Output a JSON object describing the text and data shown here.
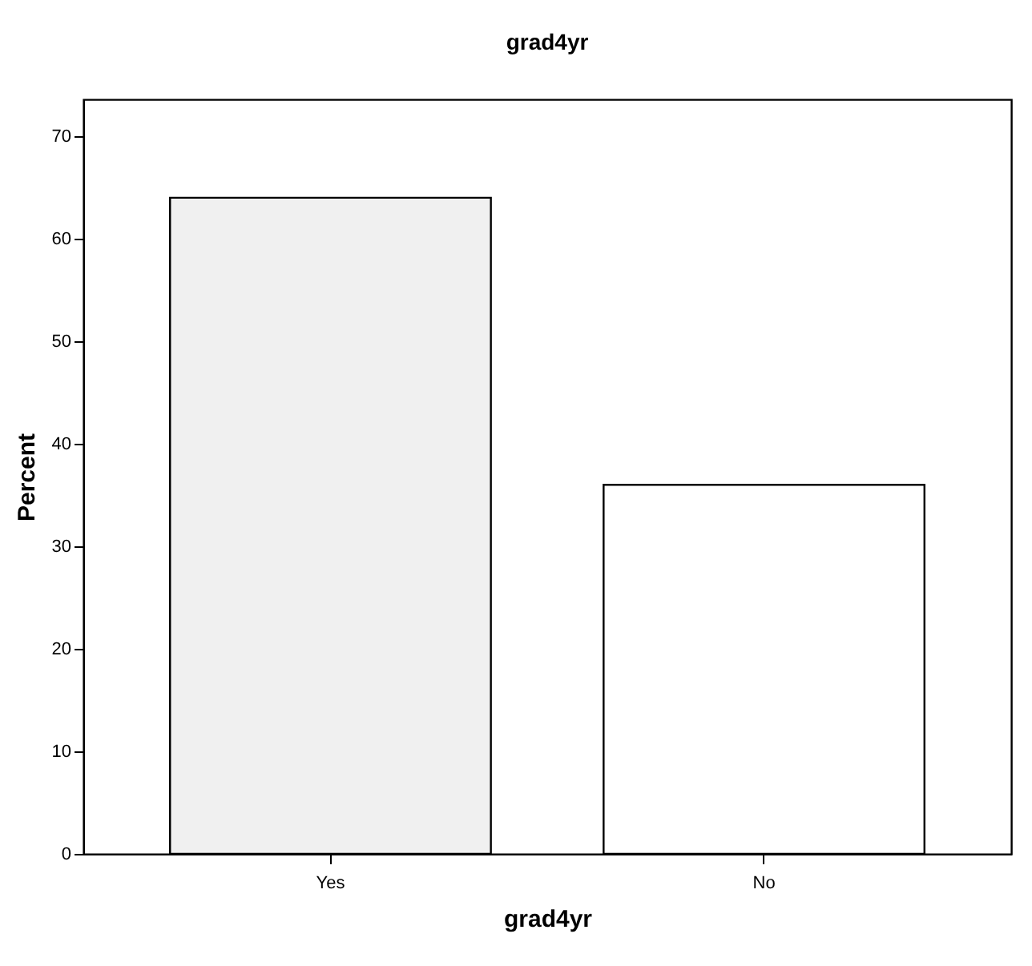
{
  "chart_data": {
    "type": "bar",
    "title": "grad4yr",
    "xlabel": "grad4yr",
    "ylabel": "Percent",
    "categories": [
      "Yes",
      "No"
    ],
    "values": [
      64,
      36
    ],
    "colors": [
      "#f0f0f0",
      "#ffffff"
    ],
    "ylim": [
      0,
      73.6
    ],
    "yticks": [
      0,
      10,
      20,
      30,
      40,
      50,
      60,
      70
    ],
    "grid": false
  }
}
